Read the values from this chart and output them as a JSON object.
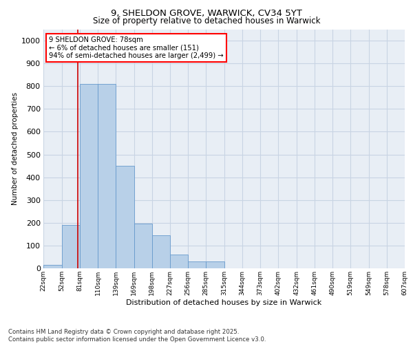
{
  "title_line1": "9, SHELDON GROVE, WARWICK, CV34 5YT",
  "title_line2": "Size of property relative to detached houses in Warwick",
  "xlabel": "Distribution of detached houses by size in Warwick",
  "ylabel": "Number of detached properties",
  "footer_line1": "Contains HM Land Registry data © Crown copyright and database right 2025.",
  "footer_line2": "Contains public sector information licensed under the Open Government Licence v3.0.",
  "annotation_line1": "9 SHELDON GROVE: 78sqm",
  "annotation_line2": "← 6% of detached houses are smaller (151)",
  "annotation_line3": "94% of semi-detached houses are larger (2,499) →",
  "bar_left_edges": [
    22,
    52,
    81,
    110,
    139,
    169,
    198,
    227,
    256,
    285,
    315,
    344,
    373,
    402,
    432,
    461,
    490,
    519,
    549,
    578
  ],
  "bar_widths": [
    30,
    29,
    29,
    29,
    30,
    29,
    29,
    29,
    29,
    30,
    29,
    29,
    29,
    30,
    29,
    29,
    29,
    30,
    29,
    29
  ],
  "bar_heights": [
    15,
    190,
    810,
    810,
    450,
    195,
    145,
    60,
    30,
    30,
    0,
    0,
    0,
    0,
    0,
    0,
    0,
    0,
    0,
    0
  ],
  "bar_color": "#b8d0e8",
  "bar_edgecolor": "#6699cc",
  "grid_color": "#c8d4e3",
  "bg_color": "#e8eef5",
  "vline_x": 78,
  "vline_color": "#cc0000",
  "ylim": [
    0,
    1050
  ],
  "yticks": [
    0,
    100,
    200,
    300,
    400,
    500,
    600,
    700,
    800,
    900,
    1000
  ],
  "xlim": [
    22,
    607
  ],
  "xtick_labels": [
    "22sqm",
    "52sqm",
    "81sqm",
    "110sqm",
    "139sqm",
    "169sqm",
    "198sqm",
    "227sqm",
    "256sqm",
    "285sqm",
    "315sqm",
    "344sqm",
    "373sqm",
    "402sqm",
    "432sqm",
    "461sqm",
    "490sqm",
    "519sqm",
    "549sqm",
    "578sqm",
    "607sqm"
  ],
  "xtick_positions": [
    22,
    52,
    81,
    110,
    139,
    169,
    198,
    227,
    256,
    285,
    315,
    344,
    373,
    402,
    432,
    461,
    490,
    519,
    549,
    578,
    607
  ]
}
